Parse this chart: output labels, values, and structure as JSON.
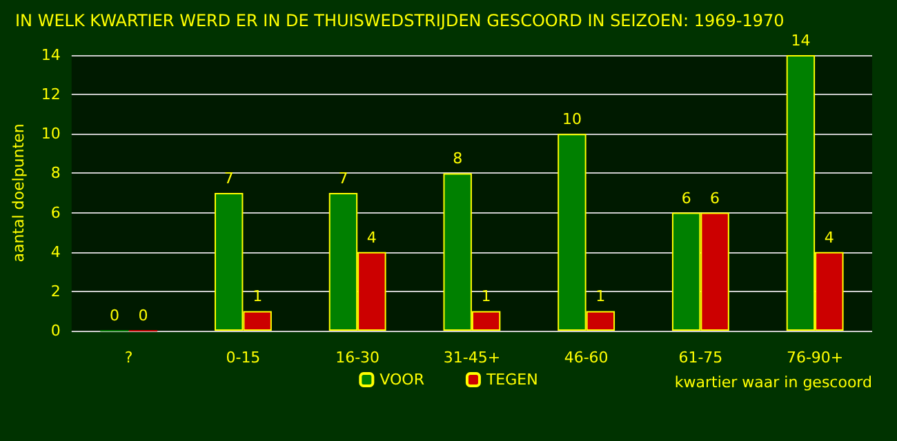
{
  "chart_data": {
    "type": "bar",
    "title": "IN WELK KWARTIER WERD ER IN DE THUISWEDSTRIJDEN GESCOORD IN SEIZOEN: 1969-1970",
    "xlabel": "kwartier waar in gescoord",
    "ylabel": "aantal doelpunten",
    "categories": [
      "?",
      "0-15",
      "16-30",
      "31-45+",
      "46-60",
      "61-75",
      "76-90+"
    ],
    "series": [
      {
        "name": "VOOR",
        "color": "#008000",
        "values": [
          0,
          7,
          7,
          8,
          10,
          6,
          14
        ]
      },
      {
        "name": "TEGEN",
        "color": "#cc0000",
        "values": [
          0,
          1,
          4,
          1,
          1,
          6,
          4
        ]
      }
    ],
    "ylim": [
      0,
      14
    ],
    "yticks": [
      0,
      2,
      4,
      6,
      8,
      10,
      12,
      14
    ],
    "grid": "y",
    "legend": "bottom",
    "data_labels": true
  }
}
